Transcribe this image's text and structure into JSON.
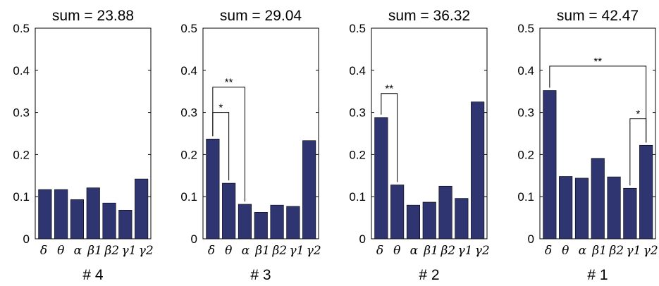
{
  "chart_data": [
    {
      "type": "bar",
      "title": "sum = 23.88",
      "panel_label": "# 4",
      "categories": [
        "δ",
        "θ",
        "α",
        "β1",
        "β2",
        "γ1",
        "γ2"
      ],
      "values": [
        0.117,
        0.117,
        0.093,
        0.121,
        0.085,
        0.068,
        0.142
      ],
      "ylim": [
        0,
        0.5
      ],
      "yticks": [
        "0",
        "0.1",
        "0.2",
        "0.3",
        "0.4",
        "0.5"
      ],
      "bar_color": "#2e3570",
      "significance": []
    },
    {
      "type": "bar",
      "title": "sum = 29.04",
      "panel_label": "# 3",
      "categories": [
        "δ",
        "θ",
        "α",
        "β1",
        "β2",
        "γ1",
        "γ2"
      ],
      "values": [
        0.237,
        0.132,
        0.082,
        0.063,
        0.08,
        0.077,
        0.233
      ],
      "ylim": [
        0,
        0.5
      ],
      "yticks": [
        "0",
        "0.1",
        "0.2",
        "0.3",
        "0.4",
        "0.5"
      ],
      "bar_color": "#2e3570",
      "significance": [
        {
          "from": 0,
          "to": 1,
          "label": "*",
          "y": 0.3
        },
        {
          "from": 0,
          "to": 2,
          "label": "**",
          "y": 0.36
        }
      ]
    },
    {
      "type": "bar",
      "title": "sum = 36.32",
      "panel_label": "# 2",
      "categories": [
        "δ",
        "θ",
        "α",
        "β1",
        "β2",
        "γ1",
        "γ2"
      ],
      "values": [
        0.288,
        0.128,
        0.08,
        0.087,
        0.125,
        0.096,
        0.325
      ],
      "ylim": [
        0,
        0.5
      ],
      "yticks": [
        "0",
        "0.1",
        "0.2",
        "0.3",
        "0.4",
        "0.5"
      ],
      "bar_color": "#2e3570",
      "significance": [
        {
          "from": 0,
          "to": 1,
          "label": "**",
          "y": 0.345
        }
      ]
    },
    {
      "type": "bar",
      "title": "sum = 42.47",
      "panel_label": "# 1",
      "categories": [
        "δ",
        "θ",
        "α",
        "β1",
        "β2",
        "γ1",
        "γ2"
      ],
      "values": [
        0.352,
        0.148,
        0.144,
        0.191,
        0.147,
        0.12,
        0.222
      ],
      "ylim": [
        0,
        0.5
      ],
      "yticks": [
        "0",
        "0.1",
        "0.2",
        "0.3",
        "0.4",
        "0.5"
      ],
      "bar_color": "#2e3570",
      "significance": [
        {
          "from": 0,
          "to": 6,
          "label": "**",
          "y": 0.41
        },
        {
          "from": 5,
          "to": 6,
          "label": "*",
          "y": 0.285
        }
      ]
    }
  ]
}
